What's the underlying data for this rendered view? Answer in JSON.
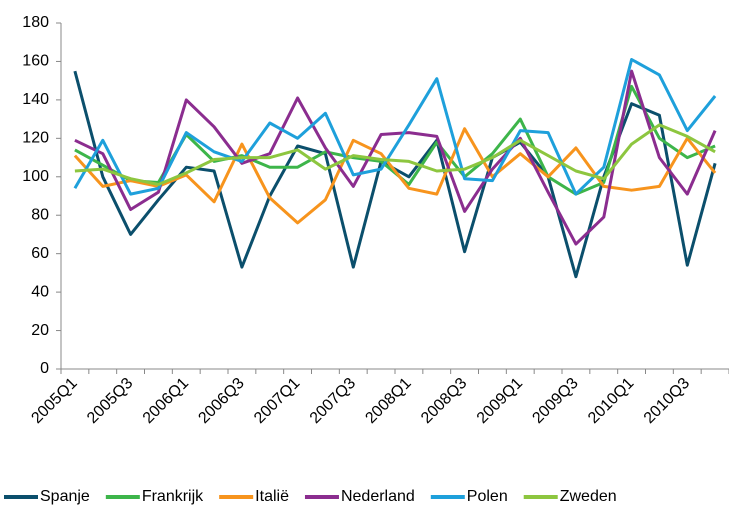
{
  "chart_data": {
    "type": "line",
    "categories": [
      "2005Q1",
      null,
      "2005Q3",
      null,
      "2006Q1",
      null,
      "2006Q3",
      null,
      "2007Q1",
      null,
      "2007Q3",
      null,
      "2008Q1",
      null,
      "2008Q3",
      null,
      "2009Q1",
      null,
      "2009Q3",
      null,
      "2010Q1",
      null,
      "2010Q3",
      null
    ],
    "series": [
      {
        "name": "Spanje",
        "color": "#0b4f6c",
        "values": [
          155,
          100,
          70,
          88,
          105,
          103,
          53,
          90,
          116,
          112,
          53,
          108,
          100,
          119,
          61,
          110,
          118,
          100,
          48,
          100,
          138,
          132,
          54,
          107
        ]
      },
      {
        "name": "Frankrijk",
        "color": "#3db54a",
        "values": [
          114,
          106,
          98,
          97,
          122,
          108,
          111,
          105,
          105,
          113,
          110,
          108,
          96,
          118,
          100,
          112,
          130,
          100,
          91,
          97,
          147,
          120,
          110,
          116
        ]
      },
      {
        "name": "Italië",
        "color": "#f7941d",
        "values": [
          111,
          95,
          98,
          95,
          101,
          87,
          117,
          89,
          76,
          88,
          119,
          112,
          94,
          91,
          125,
          100,
          112,
          100,
          115,
          95,
          93,
          95,
          120,
          102
        ]
      },
      {
        "name": "Nederland",
        "color": "#8b2d8f",
        "values": [
          119,
          112,
          83,
          92,
          140,
          126,
          107,
          112,
          141,
          115,
          95,
          122,
          123,
          121,
          82,
          104,
          120,
          92,
          65,
          79,
          155,
          110,
          91,
          124
        ]
      },
      {
        "name": "Polen",
        "color": "#1ea0db",
        "values": [
          94,
          119,
          91,
          94,
          123,
          113,
          108,
          128,
          120,
          133,
          101,
          104,
          127,
          151,
          99,
          98,
          124,
          123,
          91,
          105,
          161,
          153,
          124,
          142
        ]
      },
      {
        "name": "Zweden",
        "color": "#8dc63f",
        "values": [
          103,
          104,
          99,
          96,
          102,
          109,
          110,
          110,
          114,
          104,
          111,
          109,
          108,
          103,
          104,
          110,
          119,
          111,
          103,
          99,
          117,
          127,
          121,
          113
        ]
      }
    ],
    "ylim": [
      0,
      180
    ],
    "yticks": [
      0,
      20,
      40,
      60,
      80,
      100,
      120,
      140,
      160,
      180
    ],
    "grid": false,
    "legend": "bottom"
  }
}
